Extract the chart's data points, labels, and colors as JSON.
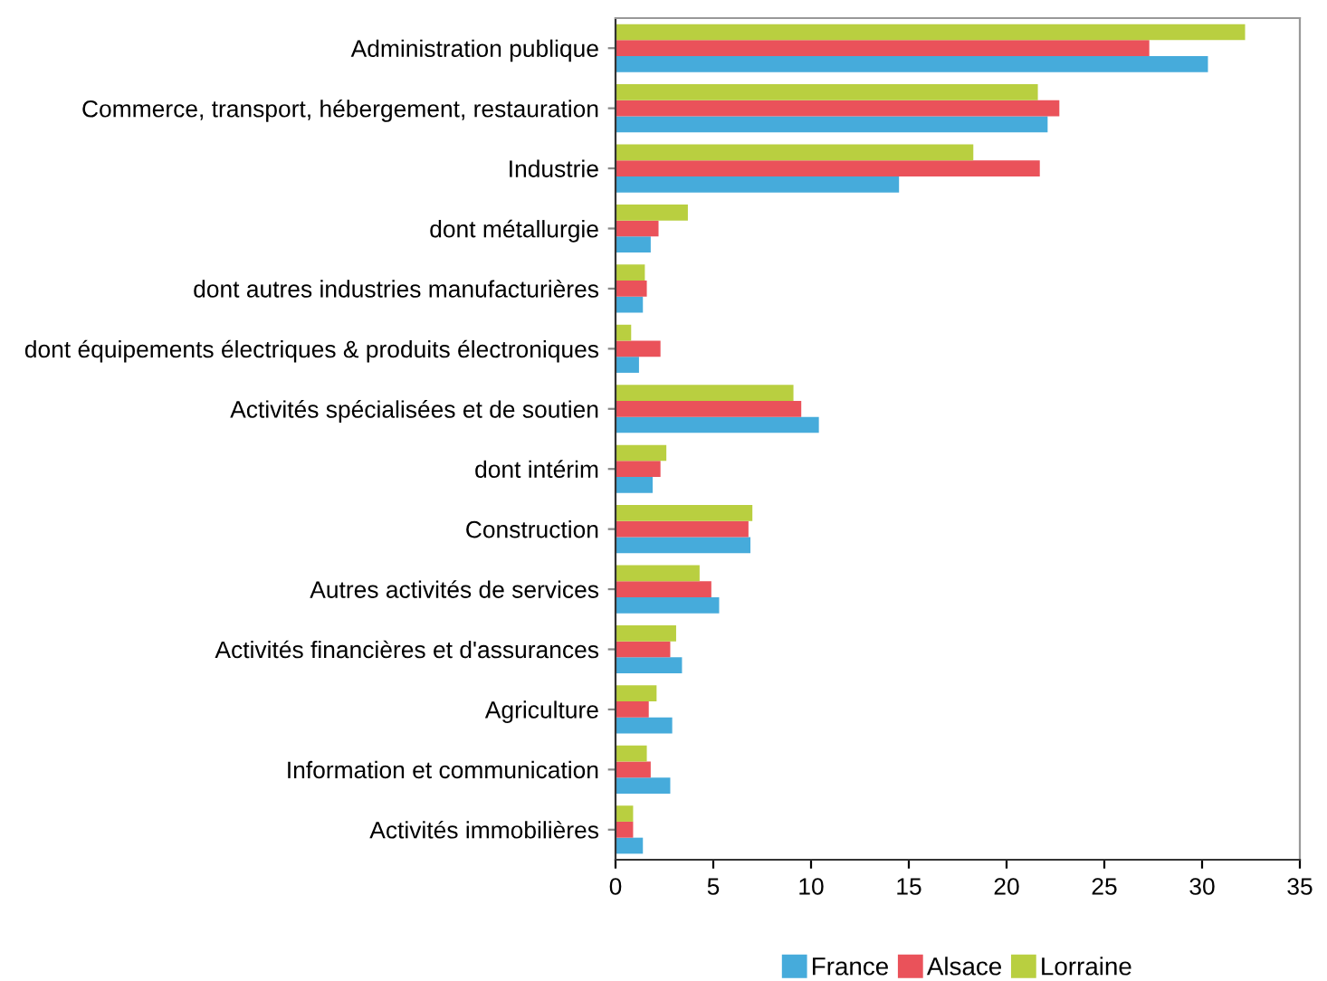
{
  "chart_data": {
    "type": "bar",
    "orientation": "horizontal",
    "categories": [
      "Administration publique",
      "Commerce, transport, hébergement, restauration",
      "Industrie",
      "dont métallurgie",
      "dont autres industries manufacturières",
      "dont équipements électriques & produits électroniques",
      "Activités spécialisées et de soutien",
      "dont intérim",
      "Construction",
      "Autres activités de services",
      "Activités financières et d'assurances",
      "Agriculture",
      "Information et communication",
      "Activités immobilières"
    ],
    "series": [
      {
        "name": "France",
        "color": "#46abdb",
        "values": [
          30.3,
          22.1,
          14.5,
          1.8,
          1.4,
          1.2,
          10.4,
          1.9,
          6.9,
          5.3,
          3.4,
          2.9,
          2.8,
          1.4
        ]
      },
      {
        "name": "Alsace",
        "color": "#ea525a",
        "values": [
          27.3,
          22.7,
          21.7,
          2.2,
          1.6,
          2.3,
          9.5,
          2.3,
          6.8,
          4.9,
          2.8,
          1.7,
          1.8,
          0.9
        ]
      },
      {
        "name": "Lorraine",
        "color": "#b9cf40",
        "values": [
          32.2,
          21.6,
          18.3,
          3.7,
          1.5,
          0.8,
          9.1,
          2.6,
          7.0,
          4.3,
          3.1,
          2.1,
          1.6,
          0.9
        ]
      }
    ],
    "xlim": [
      0,
      35
    ],
    "xticks": [
      0,
      5,
      10,
      15,
      20,
      25,
      30,
      35
    ],
    "grid": false,
    "legend": "bottom"
  }
}
